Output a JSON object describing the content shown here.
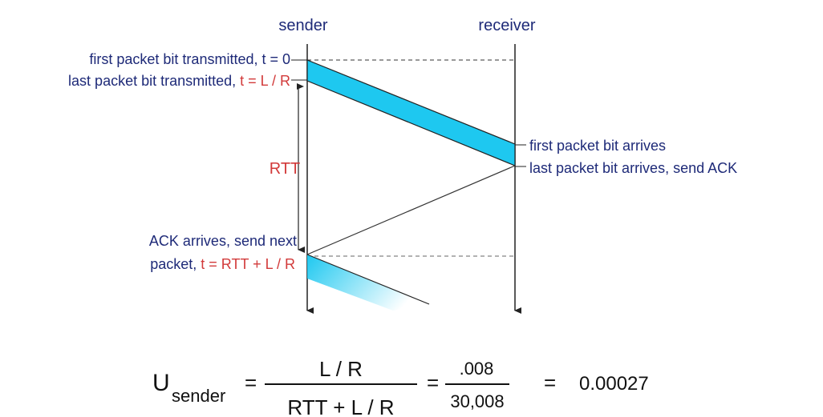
{
  "diagram": {
    "sender": "sender",
    "receiver": "receiver",
    "labels": {
      "first_transmitted": "first packet bit transmitted, t = 0",
      "last_transmitted": "last packet bit transmitted, ",
      "last_transmitted_time": "t = L / R",
      "rtt": "RTT",
      "first_arrives": "first packet bit arrives",
      "last_arrives": "last packet bit arrives, send ACK",
      "ack_arrives": "ACK arrives, send next",
      "packet": "packet, ",
      "packet_time": "t = RTT + L / R"
    },
    "formula": {
      "u": "U",
      "subscript": "sender",
      "eq1": "=",
      "numerator": "L / R",
      "denominator": "RTT + L / R",
      "eq2": "=",
      "num_value": ".008",
      "den_value": "30,008",
      "eq3": "=",
      "result": "0.00027"
    }
  }
}
